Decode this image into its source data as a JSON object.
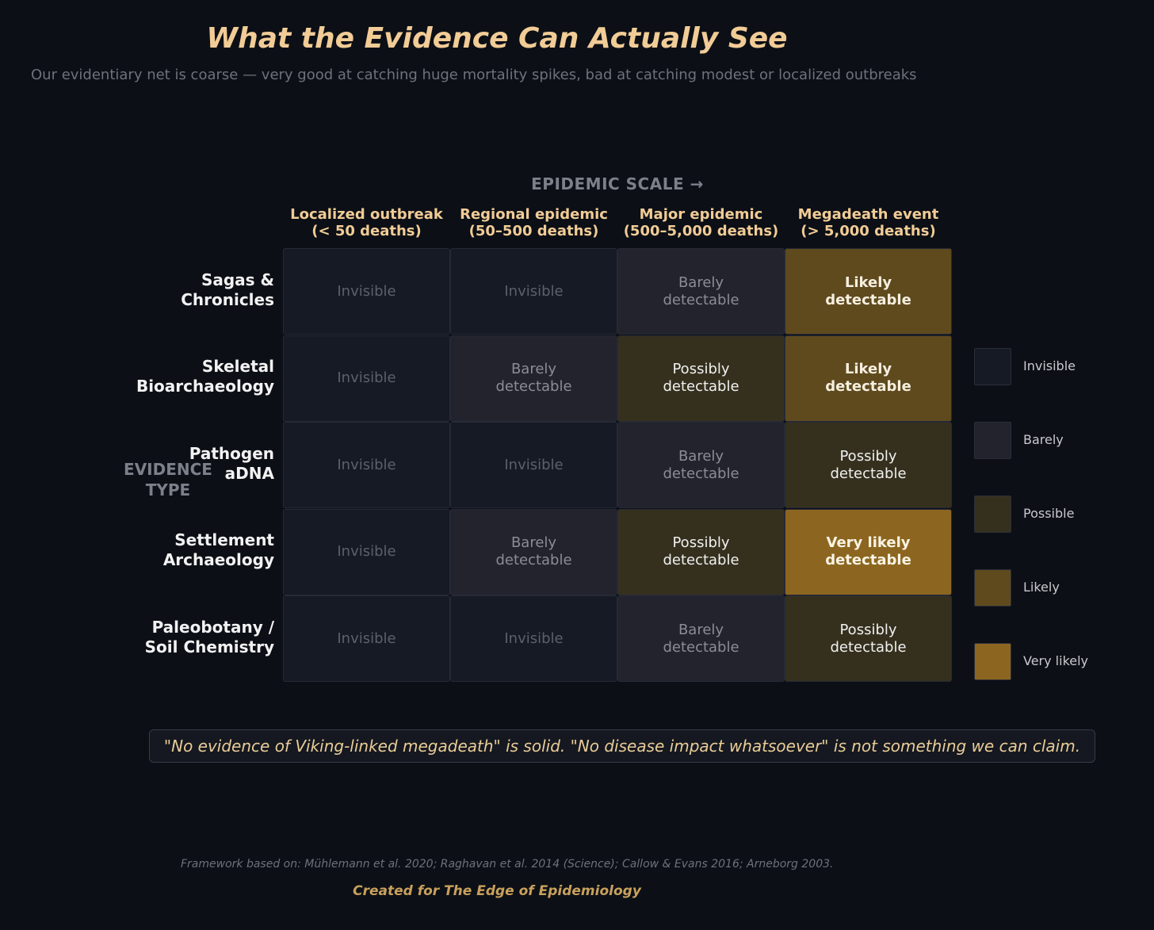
{
  "chart_data": {
    "type": "heatmap",
    "title": "What the Evidence Can Actually See",
    "subtitle": "Our evidentiary net is coarse — very good at catching huge mortality spikes, bad at catching modest or localized outbreaks",
    "xlabel": "EPIDEMIC SCALE  →",
    "ylabel": "EVIDENCE\nTYPE",
    "columns": [
      "Localized outbreak\n(< 50 deaths)",
      "Regional epidemic\n(50–500 deaths)",
      "Major epidemic\n(500–5,000 deaths)",
      "Megadeath event\n(> 5,000 deaths)"
    ],
    "rows": [
      "Sagas &\nChronicles",
      "Skeletal\nBioarchaeology",
      "Pathogen\naDNA",
      "Settlement\nArchaeology",
      "Paleobotany /\nSoil Chemistry"
    ],
    "levels": [
      [
        0,
        0,
        1,
        3
      ],
      [
        0,
        1,
        2,
        3
      ],
      [
        0,
        0,
        1,
        2
      ],
      [
        0,
        1,
        2,
        4
      ],
      [
        0,
        0,
        1,
        2
      ]
    ],
    "cell_labels": [
      [
        "Invisible",
        "Invisible",
        "Barely\ndetectable",
        "Likely\ndetectable"
      ],
      [
        "Invisible",
        "Barely\ndetectable",
        "Possibly\ndetectable",
        "Likely\ndetectable"
      ],
      [
        "Invisible",
        "Invisible",
        "Barely\ndetectable",
        "Possibly\ndetectable"
      ],
      [
        "Invisible",
        "Barely\ndetectable",
        "Possibly\ndetectable",
        "Very likely\ndetectable"
      ],
      [
        "Invisible",
        "Invisible",
        "Barely\ndetectable",
        "Possibly\ndetectable"
      ]
    ],
    "legend": {
      "placement": "right",
      "items": [
        {
          "label": "Invisible",
          "color": "#161a24"
        },
        {
          "label": "Barely",
          "color": "#22232c"
        },
        {
          "label": "Possible",
          "color": "#35301e"
        },
        {
          "label": "Likely",
          "color": "#5f4a1e"
        },
        {
          "label": "Very likely",
          "color": "#8c6620"
        }
      ]
    }
  },
  "annotation": "\"No evidence of Viking-linked megadeath\" is solid. \"No disease impact whatsoever\" is not something we can claim.",
  "source_note": "Framework based on: Mühlemann et al. 2020; Raghavan et al. 2014 (Science); Callow & Evans 2016; Arneborg 2003.",
  "credit": "Created for The Edge of Epidemiology"
}
